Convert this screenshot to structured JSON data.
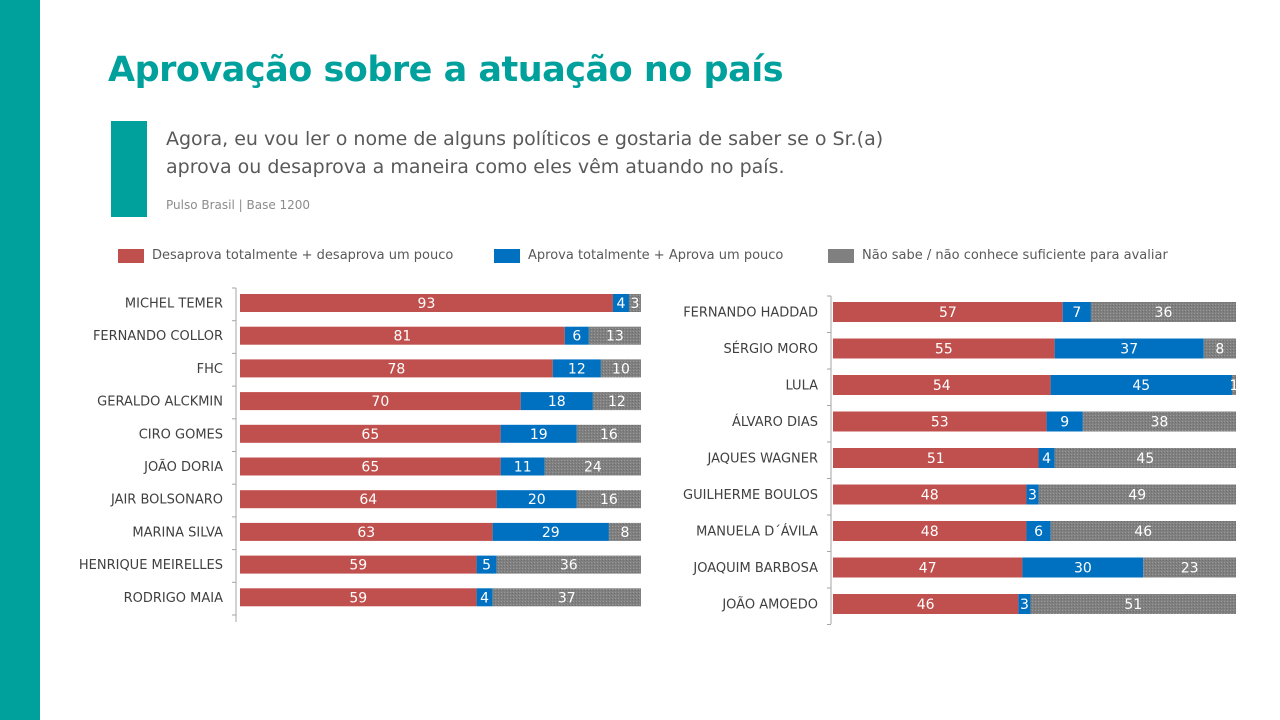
{
  "title": "Aprovação sobre a atuação no país",
  "question": "Agora, eu vou ler o nome de alguns políticos e gostaria de saber se o Sr.(a) aprova ou desaprova a maneira como eles vêm atuando no país.",
  "source": "Pulso Brasil | Base 1200",
  "colors": {
    "accent": "#00a19c",
    "disapprove": "#c0504d",
    "approve": "#0070c0",
    "dontknow": "#808080"
  },
  "legend": [
    {
      "label": "Desaprova totalmente + desaprova um pouco",
      "color": "#c0504d"
    },
    {
      "label": "Aprova totalmente + Aprova um pouco",
      "color": "#0070c0"
    },
    {
      "label": "Não sabe / não conhece suficiente para avaliar",
      "color": "#808080"
    }
  ],
  "chart_data": [
    {
      "type": "bar",
      "orientation": "horizontal",
      "stacked": true,
      "categories": [
        "MICHEL TEMER",
        "FERNANDO COLLOR",
        "FHC",
        "GERALDO ALCKMIN",
        "CIRO GOMES",
        "JOÃO DORIA",
        "JAIR BOLSONARO",
        "MARINA SILVA",
        "HENRIQUE MEIRELLES",
        "RODRIGO MAIA"
      ],
      "series": [
        {
          "name": "Desaprova totalmente + desaprova um pouco",
          "values": [
            93,
            81,
            78,
            70,
            65,
            65,
            64,
            63,
            59,
            59
          ]
        },
        {
          "name": "Aprova totalmente + Aprova um pouco",
          "values": [
            4,
            6,
            12,
            18,
            19,
            11,
            20,
            29,
            5,
            4
          ]
        },
        {
          "name": "Não sabe / não conhece suficiente para avaliar",
          "values": [
            3,
            13,
            10,
            12,
            16,
            24,
            16,
            8,
            36,
            37
          ]
        }
      ],
      "xlim": [
        0,
        100
      ]
    },
    {
      "type": "bar",
      "orientation": "horizontal",
      "stacked": true,
      "categories": [
        "FERNANDO HADDAD",
        "SÉRGIO MORO",
        "LULA",
        "ÁLVARO DIAS",
        "JAQUES WAGNER",
        "GUILHERME BOULOS",
        "MANUELA D´ÁVILA",
        "JOAQUIM BARBOSA",
        "JOÃO AMOEDO"
      ],
      "series": [
        {
          "name": "Desaprova totalmente + desaprova um pouco",
          "values": [
            57,
            55,
            54,
            53,
            51,
            48,
            48,
            47,
            46
          ]
        },
        {
          "name": "Aprova totalmente + Aprova um pouco",
          "values": [
            7,
            37,
            45,
            9,
            4,
            3,
            6,
            30,
            3
          ]
        },
        {
          "name": "Não sabe / não conhece suficiente para avaliar",
          "values": [
            36,
            8,
            1,
            38,
            45,
            49,
            46,
            23,
            51
          ]
        }
      ],
      "xlim": [
        0,
        100
      ]
    }
  ]
}
